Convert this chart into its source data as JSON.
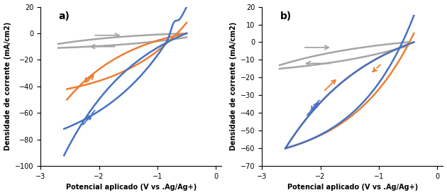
{
  "panel_a": {
    "title": "a)",
    "ylabel": "Densidade de corrente (mA/cm2)",
    "xlabel": "Potencial aplicado (V vs .Ag/Ag+)",
    "xlim": [
      -3,
      0.1
    ],
    "ylim": [
      -100,
      20
    ],
    "yticks": [
      -100,
      -80,
      -60,
      -40,
      -20,
      0,
      20
    ],
    "xticks": [
      -3,
      -2,
      -1,
      0
    ],
    "colors": {
      "blue": "#4472C4",
      "orange": "#ED7D31",
      "gray": "#A5A5A5"
    }
  },
  "panel_b": {
    "title": "b)",
    "ylabel": "Densidade de corrente (mA/cm2)",
    "xlabel": "Potencial aplicado (V vs .Ag/Ag+)",
    "xlim": [
      -3,
      0.1
    ],
    "ylim": [
      -70,
      20
    ],
    "yticks": [
      -70,
      -60,
      -50,
      -40,
      -30,
      -20,
      -10,
      0,
      10,
      20
    ],
    "xticks": [
      -3,
      -2,
      -1,
      0
    ],
    "colors": {
      "blue": "#4472C4",
      "orange": "#ED7D31",
      "gray": "#A5A5A5"
    }
  },
  "background": "#ffffff"
}
